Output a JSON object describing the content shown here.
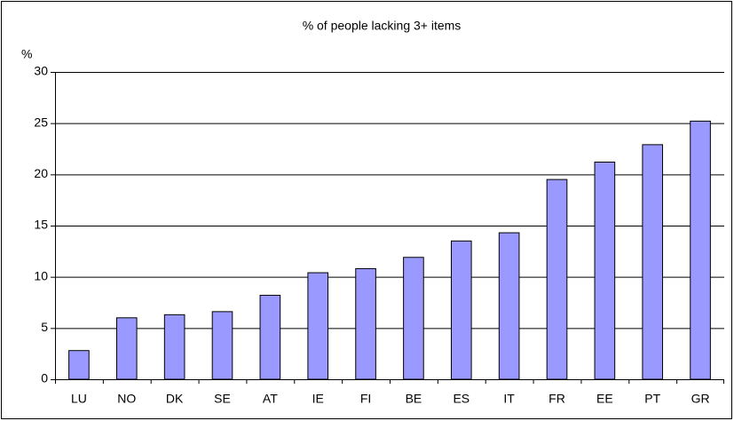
{
  "chart_data": {
    "type": "bar",
    "title": "% of people lacking 3+ items",
    "y_label": "%",
    "categories": [
      "LU",
      "NO",
      "DK",
      "SE",
      "AT",
      "IE",
      "FI",
      "BE",
      "ES",
      "IT",
      "FR",
      "EE",
      "PT",
      "GR"
    ],
    "values": [
      2.8,
      6.0,
      6.3,
      6.6,
      8.2,
      10.4,
      10.8,
      11.9,
      13.5,
      14.3,
      19.5,
      21.2,
      22.9,
      25.2
    ],
    "color": "#9999ff",
    "ylim": [
      0,
      30
    ],
    "yticks": [
      0,
      5,
      10,
      15,
      20,
      25,
      30
    ],
    "grid": true
  }
}
